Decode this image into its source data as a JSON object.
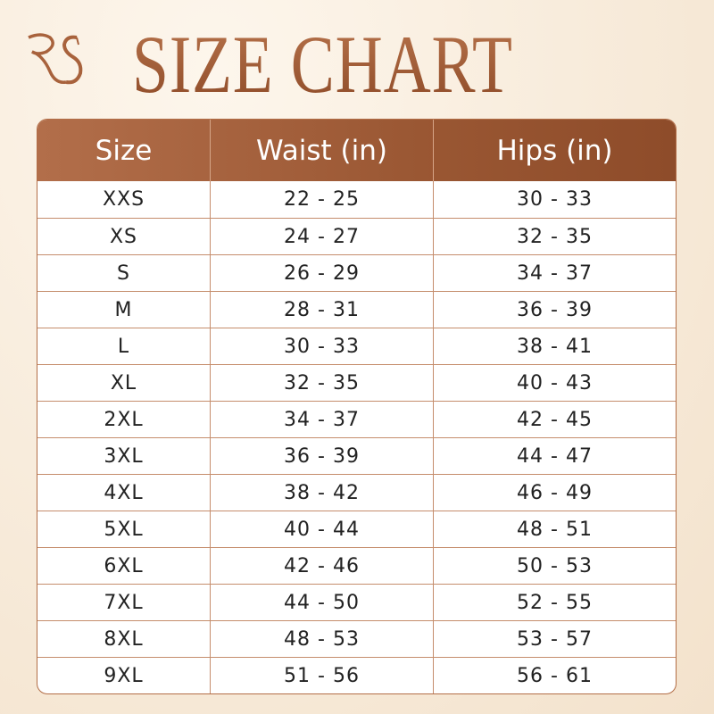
{
  "brand": {
    "logo_text": "RS",
    "accent_color": "#9a5430"
  },
  "title": "SIZE CHART",
  "table": {
    "headers": [
      "Size",
      "Waist (in)",
      "Hips (in)"
    ],
    "rows": [
      [
        "XXS",
        "22 - 25",
        "30 - 33"
      ],
      [
        "XS",
        "24 - 27",
        "32 - 35"
      ],
      [
        "S",
        "26 - 29",
        "34 - 37"
      ],
      [
        "M",
        "28 - 31",
        "36 - 39"
      ],
      [
        "L",
        "30 - 33",
        "38 - 41"
      ],
      [
        "XL",
        "32 - 35",
        "40 - 43"
      ],
      [
        "2XL",
        "34 - 37",
        "42 - 45"
      ],
      [
        "3XL",
        "36 - 39",
        "44 - 47"
      ],
      [
        "4XL",
        "38 - 42",
        "46 - 49"
      ],
      [
        "5XL",
        "40 - 44",
        "48 - 51"
      ],
      [
        "6XL",
        "42 - 46",
        "50 - 53"
      ],
      [
        "7XL",
        "44 - 50",
        "52 - 55"
      ],
      [
        "8XL",
        "48 - 53",
        "53 - 57"
      ],
      [
        "9XL",
        "51 - 56",
        "56 - 61"
      ]
    ]
  }
}
